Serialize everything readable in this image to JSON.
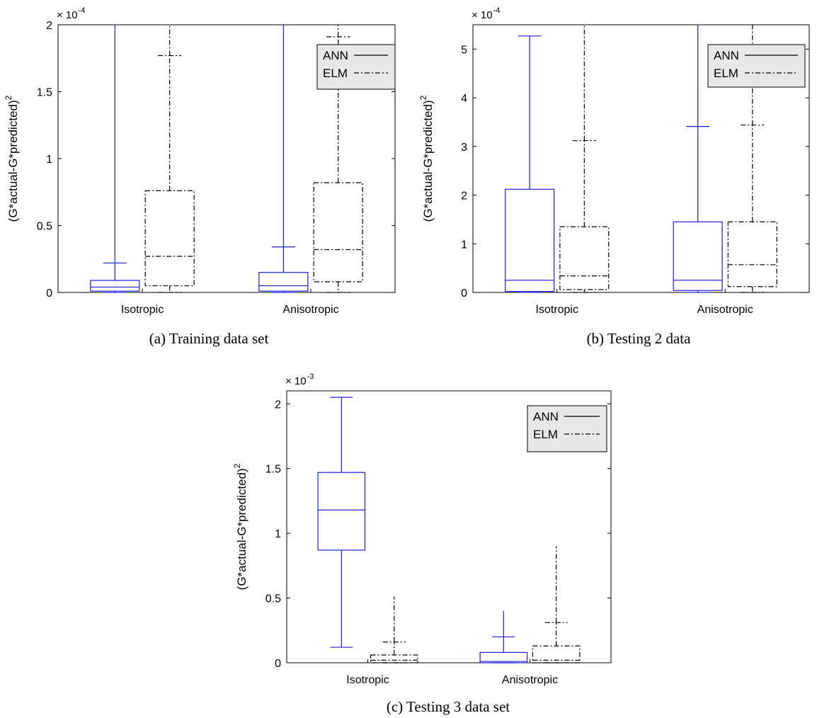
{
  "colors": {
    "ann": "#1f1fd6",
    "elm": "#000000",
    "legend_bg": "#e8e8e8"
  },
  "chart_data": [
    {
      "type": "box",
      "panel_caption": "(a)  Training data set",
      "ylabel": "(G*actual-G*predicted)^2",
      "ylabel_main": "(G*actual-G*predicted)",
      "ylabel_sup": "2",
      "multiplier_base": "× 10",
      "multiplier_exp": "-4",
      "ylim": [
        0,
        2
      ],
      "yticks": [
        0,
        0.5,
        1,
        1.5,
        2
      ],
      "ytick_labels": [
        "0",
        "0.5",
        "1",
        "1.5",
        "2"
      ],
      "categories": [
        "Isotropic",
        "Anisotropic"
      ],
      "legend": [
        "ANN",
        "ELM"
      ],
      "legend_position": "top-right",
      "series": [
        {
          "name": "ANN",
          "style": "solid",
          "boxes": [
            {
              "whisker_low": 0.0,
              "q1": 0.01,
              "median": 0.04,
              "q3": 0.09,
              "whisker_high": 0.22,
              "outlier_max": 2.0
            },
            {
              "whisker_low": 0.0,
              "q1": 0.01,
              "median": 0.05,
              "q3": 0.15,
              "whisker_high": 0.34,
              "outlier_max": 2.0
            }
          ]
        },
        {
          "name": "ELM",
          "style": "dashdot",
          "boxes": [
            {
              "whisker_low": 0.0,
              "q1": 0.05,
              "median": 0.27,
              "q3": 0.76,
              "whisker_high": 1.77,
              "outlier_max": 2.0
            },
            {
              "whisker_low": 0.0,
              "q1": 0.08,
              "median": 0.32,
              "q3": 0.82,
              "whisker_high": 1.91,
              "outlier_max": 2.0
            }
          ]
        }
      ]
    },
    {
      "type": "box",
      "panel_caption": "(b)  Testing 2 data",
      "ylabel": "(G*actual-G*predicted)^2",
      "ylabel_main": "(G*actual-G*predicted)",
      "ylabel_sup": "2",
      "multiplier_base": "× 10",
      "multiplier_exp": "-4",
      "ylim": [
        0,
        5.5
      ],
      "yticks": [
        0,
        1,
        2,
        3,
        4,
        5
      ],
      "ytick_labels": [
        "0",
        "1",
        "2",
        "3",
        "4",
        "5"
      ],
      "categories": [
        "Isotropic",
        "Anisotropic"
      ],
      "legend": [
        "ANN",
        "ELM"
      ],
      "legend_position": "top-right",
      "series": [
        {
          "name": "ANN",
          "style": "solid",
          "boxes": [
            {
              "whisker_low": 0.0,
              "q1": 0.02,
              "median": 0.25,
              "q3": 2.12,
              "whisker_high": 5.27,
              "outlier_max": null
            },
            {
              "whisker_low": 0.0,
              "q1": 0.04,
              "median": 0.25,
              "q3": 1.45,
              "whisker_high": 3.41,
              "outlier_max": 5.5
            }
          ]
        },
        {
          "name": "ELM",
          "style": "dashdot",
          "boxes": [
            {
              "whisker_low": 0.0,
              "q1": 0.06,
              "median": 0.34,
              "q3": 1.35,
              "whisker_high": 3.12,
              "outlier_max": 5.5
            },
            {
              "whisker_low": 0.0,
              "q1": 0.12,
              "median": 0.57,
              "q3": 1.45,
              "whisker_high": 3.44,
              "outlier_max": 5.5
            }
          ]
        }
      ]
    },
    {
      "type": "box",
      "panel_caption": "(c)  Testing 3 data set",
      "ylabel": "(G*actual-G*predicted)^2",
      "ylabel_main": "(G*actual-G*predicted)",
      "ylabel_sup": "2",
      "multiplier_base": "× 10",
      "multiplier_exp": "-3",
      "ylim": [
        0,
        2.1
      ],
      "yticks": [
        0,
        0.5,
        1,
        1.5,
        2
      ],
      "ytick_labels": [
        "0",
        "0.5",
        "1",
        "1.5",
        "2"
      ],
      "categories": [
        "Isotropic",
        "Anisotropic"
      ],
      "legend": [
        "ANN",
        "ELM"
      ],
      "legend_position": "top-right",
      "series": [
        {
          "name": "ANN",
          "style": "solid",
          "boxes": [
            {
              "whisker_low": 0.12,
              "q1": 0.87,
              "median": 1.18,
              "q3": 1.47,
              "whisker_high": 2.05,
              "outlier_max": null
            },
            {
              "whisker_low": 0.0,
              "q1": 0.0,
              "median": 0.01,
              "q3": 0.08,
              "whisker_high": 0.2,
              "outlier_max": 0.4
            }
          ]
        },
        {
          "name": "ELM",
          "style": "dashdot",
          "boxes": [
            {
              "whisker_low": 0.0,
              "q1": 0.0,
              "median": 0.02,
              "q3": 0.06,
              "whisker_high": 0.16,
              "outlier_max": 0.51
            },
            {
              "whisker_low": 0.0,
              "q1": 0.0,
              "median": 0.02,
              "q3": 0.13,
              "whisker_high": 0.31,
              "outlier_max": 0.9
            }
          ]
        }
      ]
    }
  ]
}
